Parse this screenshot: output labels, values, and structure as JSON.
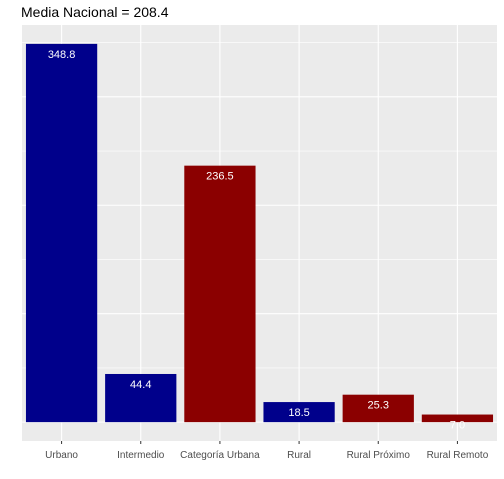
{
  "chart_data": {
    "type": "bar",
    "title": "Media Nacional = 208.4",
    "xlabel": "",
    "ylabel": "",
    "categories": [
      "Urbano",
      "Intermedio",
      "Categoría Urbana",
      "Rural",
      "Rural Próximo",
      "Rural Remoto"
    ],
    "values": [
      348.8,
      44.4,
      236.5,
      18.5,
      25.3,
      7.0
    ],
    "value_labels": [
      "348.8",
      "44.4",
      "236.5",
      "18.5",
      "25.3",
      "7.0"
    ],
    "bar_colors": [
      "#00008b",
      "#00008b",
      "#8b0000",
      "#00008b",
      "#8b0000",
      "#8b0000"
    ],
    "ylim": [
      -17.4,
      366.2
    ],
    "grid": true,
    "panel_background": "#ebebeb",
    "grid_color": "#ffffff",
    "tick_label_color": "#4d4d4d",
    "data_label_color": "#ffffff",
    "legend": "none"
  }
}
